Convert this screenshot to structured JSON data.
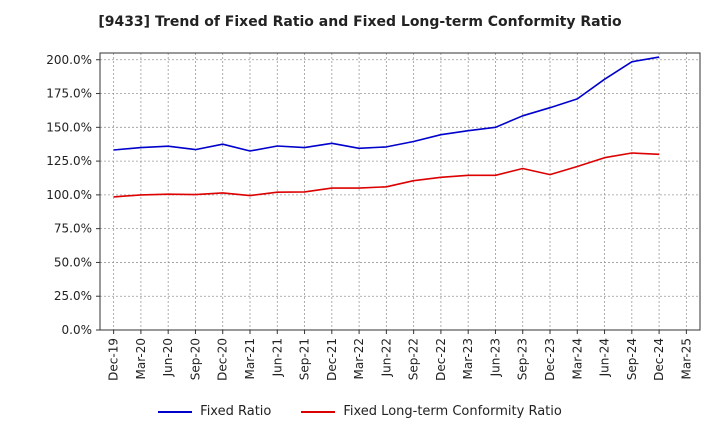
{
  "chart_data": {
    "type": "line",
    "title": "[9433]  Trend of Fixed Ratio and Fixed Long-term Conformity Ratio",
    "xlabel": "",
    "ylabel": "",
    "x_tick_labels": [
      "Dec-19",
      "Mar-20",
      "Jun-20",
      "Sep-20",
      "Dec-20",
      "Mar-21",
      "Jun-21",
      "Sep-21",
      "Dec-21",
      "Mar-22",
      "Jun-22",
      "Sep-22",
      "Dec-22",
      "Mar-23",
      "Jun-23",
      "Sep-23",
      "Dec-23",
      "Mar-24",
      "Jun-24",
      "Sep-24",
      "Dec-24",
      "Mar-25"
    ],
    "y_tick_labels": [
      "0.0%",
      "25.0%",
      "50.0%",
      "75.0%",
      "100.0%",
      "125.0%",
      "150.0%",
      "175.0%",
      "200.0%"
    ],
    "y_ticks": [
      0,
      25,
      50,
      75,
      100,
      125,
      150,
      175,
      200
    ],
    "ylim": [
      0,
      205
    ],
    "grid": true,
    "legend_position": "bottom",
    "categories": [
      "Dec-19",
      "Mar-20",
      "Jun-20",
      "Sep-20",
      "Dec-20",
      "Mar-21",
      "Jun-21",
      "Sep-21",
      "Dec-21",
      "Mar-22",
      "Jun-22",
      "Sep-22",
      "Dec-22",
      "Mar-23",
      "Jun-23",
      "Sep-23",
      "Dec-23",
      "Mar-24",
      "Jun-24",
      "Sep-24",
      "Dec-24"
    ],
    "series": [
      {
        "name": "Fixed Ratio",
        "color": "#0000cc",
        "values": [
          133.2,
          135.0,
          136.0,
          133.5,
          137.5,
          132.5,
          136.2,
          135.0,
          138.2,
          134.5,
          135.5,
          139.5,
          144.5,
          147.5,
          150.0,
          158.5,
          164.5,
          171.0,
          185.5,
          198.5,
          202.0
        ]
      },
      {
        "name": "Fixed Long-term Conformity Ratio",
        "color": "#dd0000",
        "values": [
          98.5,
          100.0,
          100.5,
          100.2,
          101.5,
          99.5,
          102.0,
          102.2,
          105.0,
          105.0,
          106.0,
          110.5,
          113.0,
          114.5,
          114.5,
          119.5,
          115.0,
          121.0,
          127.5,
          131.0,
          130.0
        ]
      }
    ]
  }
}
